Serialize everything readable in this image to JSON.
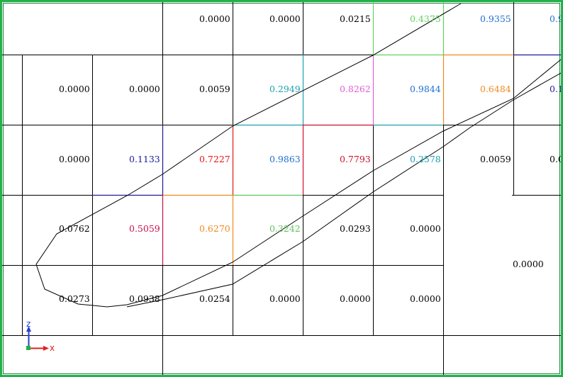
{
  "cells": [
    {
      "id": "r0c2",
      "value": "0.0000",
      "color": "#000000"
    },
    {
      "id": "r0c3",
      "value": "0.0000",
      "color": "#000000"
    },
    {
      "id": "r0c4",
      "value": "0.0215",
      "color": "#000000"
    },
    {
      "id": "r0c5",
      "value": "0.4375",
      "color": "#5fd35f"
    },
    {
      "id": "r0c6",
      "value": "0.9355",
      "color": "#1f6fd1"
    },
    {
      "id": "r0c7",
      "value": "0.9",
      "color": "#1f6fd1"
    },
    {
      "id": "r1c0",
      "value": "0.0000",
      "color": "#000000"
    },
    {
      "id": "r1c1",
      "value": "0.0000",
      "color": "#000000"
    },
    {
      "id": "r1c2",
      "value": "0.0059",
      "color": "#000000"
    },
    {
      "id": "r1c3",
      "value": "0.2949",
      "color": "#1aa1b0"
    },
    {
      "id": "r1c4",
      "value": "0.8262",
      "color": "#e25ed8"
    },
    {
      "id": "r1c5",
      "value": "0.9844",
      "color": "#1f6fd1"
    },
    {
      "id": "r1c6",
      "value": "0.6484",
      "color": "#f08a1c"
    },
    {
      "id": "r1c7",
      "value": "0.1",
      "color": "#1a1a9c"
    },
    {
      "id": "r2c0",
      "value": "0.0000",
      "color": "#000000"
    },
    {
      "id": "r2c1",
      "value": "0.1133",
      "color": "#1a1a9c"
    },
    {
      "id": "r2c2",
      "value": "0.7227",
      "color": "#e01818"
    },
    {
      "id": "r2c3",
      "value": "0.9863",
      "color": "#1f6fd1"
    },
    {
      "id": "r2c4",
      "value": "0.7793",
      "color": "#d0102a"
    },
    {
      "id": "r2c5",
      "value": "0.2578",
      "color": "#1aa1b0"
    },
    {
      "id": "r2c6",
      "value": "0.0059",
      "color": "#000000"
    },
    {
      "id": "r2c7",
      "value": "0.0",
      "color": "#000000"
    },
    {
      "id": "r3c0",
      "value": "0.0762",
      "color": "#000000"
    },
    {
      "id": "r3c1",
      "value": "0.5059",
      "color": "#c80e4a"
    },
    {
      "id": "r3c2",
      "value": "0.6270",
      "color": "#f08a1c"
    },
    {
      "id": "r3c3",
      "value": "0.3242",
      "color": "#5fc35f"
    },
    {
      "id": "r3c4",
      "value": "0.0293",
      "color": "#000000"
    },
    {
      "id": "r3c5",
      "value": "0.0000",
      "color": "#000000"
    },
    {
      "id": "big",
      "value": "0.0000",
      "color": "#000000"
    },
    {
      "id": "r4c0",
      "value": "0.0273",
      "color": "#000000"
    },
    {
      "id": "r4c1",
      "value": "0.0938",
      "color": "#000000"
    },
    {
      "id": "r4c2",
      "value": "0.0254",
      "color": "#000000"
    },
    {
      "id": "r4c3",
      "value": "0.0000",
      "color": "#000000"
    },
    {
      "id": "r4c4",
      "value": "0.0000",
      "color": "#000000"
    },
    {
      "id": "r4c5",
      "value": "0.0000",
      "color": "#000000"
    }
  ],
  "axes": {
    "x_label": "x",
    "z_label": "z",
    "x_color": "#e02020",
    "z_color": "#2a3fd0",
    "origin_color": "#22b04b"
  },
  "colors": {
    "frame": "#22b04b",
    "grid": "#000000",
    "curve": "#000000"
  }
}
